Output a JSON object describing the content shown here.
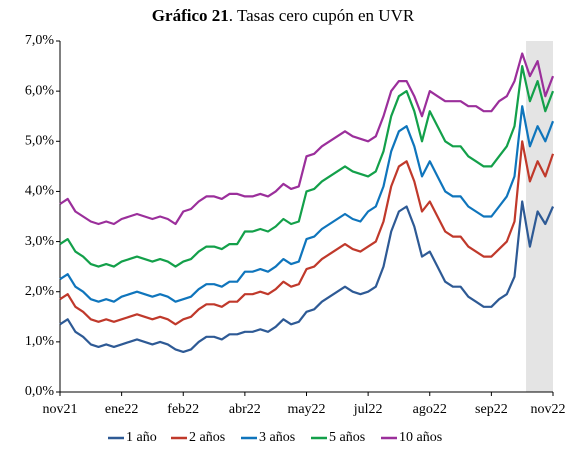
{
  "chart_data": {
    "type": "line",
    "title_bold": "Gráfico 21",
    "title": ". Tasas cero cupón en UVR",
    "categories": [
      "nov21",
      null,
      null,
      null,
      null,
      null,
      null,
      null,
      "ene22",
      null,
      null,
      null,
      null,
      null,
      null,
      null,
      "feb22",
      null,
      null,
      null,
      null,
      null,
      null,
      null,
      "abr22",
      null,
      null,
      null,
      null,
      null,
      null,
      null,
      "may22",
      null,
      null,
      null,
      null,
      null,
      null,
      null,
      "jul22",
      null,
      null,
      null,
      null,
      null,
      null,
      null,
      "ago22",
      null,
      null,
      null,
      null,
      null,
      null,
      null,
      "sep22",
      null,
      null,
      null,
      null,
      null,
      null,
      null,
      "nov22"
    ],
    "series": [
      {
        "name": "1 año",
        "color": "#2e5a95",
        "values": [
          1.35,
          1.45,
          1.2,
          1.1,
          0.95,
          0.9,
          0.95,
          0.9,
          0.95,
          1.0,
          1.05,
          1.0,
          0.95,
          1.0,
          0.95,
          0.85,
          0.8,
          0.85,
          1.0,
          1.1,
          1.1,
          1.05,
          1.15,
          1.15,
          1.2,
          1.2,
          1.25,
          1.2,
          1.3,
          1.45,
          1.35,
          1.4,
          1.6,
          1.65,
          1.8,
          1.9,
          2.0,
          2.1,
          2.0,
          1.95,
          2.0,
          2.1,
          2.5,
          3.2,
          3.6,
          3.7,
          3.3,
          2.7,
          2.8,
          2.5,
          2.2,
          2.1,
          2.1,
          1.9,
          1.8,
          1.7,
          1.7,
          1.85,
          1.95,
          2.3,
          3.8,
          2.9,
          3.6,
          3.35,
          3.7
        ]
      },
      {
        "name": "2 años",
        "color": "#c0392b",
        "values": [
          1.85,
          1.95,
          1.7,
          1.6,
          1.45,
          1.4,
          1.45,
          1.4,
          1.45,
          1.5,
          1.55,
          1.5,
          1.45,
          1.5,
          1.45,
          1.35,
          1.45,
          1.5,
          1.65,
          1.75,
          1.75,
          1.7,
          1.8,
          1.8,
          1.95,
          1.95,
          2.0,
          1.95,
          2.05,
          2.2,
          2.1,
          2.15,
          2.45,
          2.5,
          2.65,
          2.75,
          2.85,
          2.95,
          2.85,
          2.8,
          2.9,
          3.0,
          3.4,
          4.1,
          4.5,
          4.6,
          4.2,
          3.6,
          3.8,
          3.5,
          3.2,
          3.1,
          3.1,
          2.9,
          2.8,
          2.7,
          2.7,
          2.85,
          3.0,
          3.4,
          5.0,
          4.2,
          4.6,
          4.3,
          4.75
        ]
      },
      {
        "name": "3 años",
        "color": "#0f75bc",
        "values": [
          2.25,
          2.35,
          2.1,
          2.0,
          1.85,
          1.8,
          1.85,
          1.8,
          1.9,
          1.95,
          2.0,
          1.95,
          1.9,
          1.95,
          1.9,
          1.8,
          1.85,
          1.9,
          2.05,
          2.15,
          2.15,
          2.1,
          2.2,
          2.2,
          2.4,
          2.4,
          2.45,
          2.4,
          2.5,
          2.65,
          2.55,
          2.6,
          3.05,
          3.1,
          3.25,
          3.35,
          3.45,
          3.55,
          3.45,
          3.4,
          3.6,
          3.7,
          4.1,
          4.8,
          5.2,
          5.3,
          4.9,
          4.3,
          4.6,
          4.3,
          4.0,
          3.9,
          3.9,
          3.7,
          3.6,
          3.5,
          3.5,
          3.7,
          3.9,
          4.3,
          5.7,
          4.9,
          5.3,
          5.0,
          5.4
        ]
      },
      {
        "name": "5 años",
        "color": "#13a04a",
        "values": [
          2.95,
          3.05,
          2.8,
          2.7,
          2.55,
          2.5,
          2.55,
          2.5,
          2.6,
          2.65,
          2.7,
          2.65,
          2.6,
          2.65,
          2.6,
          2.5,
          2.6,
          2.65,
          2.8,
          2.9,
          2.9,
          2.85,
          2.95,
          2.95,
          3.2,
          3.2,
          3.25,
          3.2,
          3.3,
          3.45,
          3.35,
          3.4,
          4.0,
          4.05,
          4.2,
          4.3,
          4.4,
          4.5,
          4.4,
          4.35,
          4.3,
          4.4,
          4.8,
          5.5,
          5.9,
          6.0,
          5.6,
          5.0,
          5.6,
          5.3,
          5.0,
          4.9,
          4.9,
          4.7,
          4.6,
          4.5,
          4.5,
          4.7,
          4.9,
          5.3,
          6.5,
          5.8,
          6.2,
          5.6,
          6.0
        ]
      },
      {
        "name": "10 años",
        "color": "#9b2f9b",
        "values": [
          3.75,
          3.85,
          3.6,
          3.5,
          3.4,
          3.35,
          3.4,
          3.35,
          3.45,
          3.5,
          3.55,
          3.5,
          3.45,
          3.5,
          3.45,
          3.35,
          3.6,
          3.65,
          3.8,
          3.9,
          3.9,
          3.85,
          3.95,
          3.95,
          3.9,
          3.9,
          3.95,
          3.9,
          4.0,
          4.15,
          4.05,
          4.1,
          4.7,
          4.75,
          4.9,
          5.0,
          5.1,
          5.2,
          5.1,
          5.05,
          5.0,
          5.1,
          5.5,
          6.0,
          6.2,
          6.2,
          5.9,
          5.5,
          6.0,
          5.9,
          5.8,
          5.8,
          5.8,
          5.7,
          5.7,
          5.6,
          5.6,
          5.8,
          5.9,
          6.2,
          6.75,
          6.3,
          6.6,
          5.9,
          6.3
        ]
      }
    ],
    "ylim": [
      0,
      7
    ],
    "yticks": [
      {
        "value": 0,
        "label": "0,0%"
      },
      {
        "value": 1,
        "label": "1,0%"
      },
      {
        "value": 2,
        "label": "2,0%"
      },
      {
        "value": 3,
        "label": "3,0%"
      },
      {
        "value": 4,
        "label": "4,0%"
      },
      {
        "value": 5,
        "label": "5,0%"
      },
      {
        "value": 6,
        "label": "6,0%"
      },
      {
        "value": 7,
        "label": "7,0%"
      }
    ],
    "grid": false,
    "legend": "bottom",
    "highlight": {
      "from": 60.5,
      "to": 64,
      "color": "#e4e4e4"
    }
  }
}
